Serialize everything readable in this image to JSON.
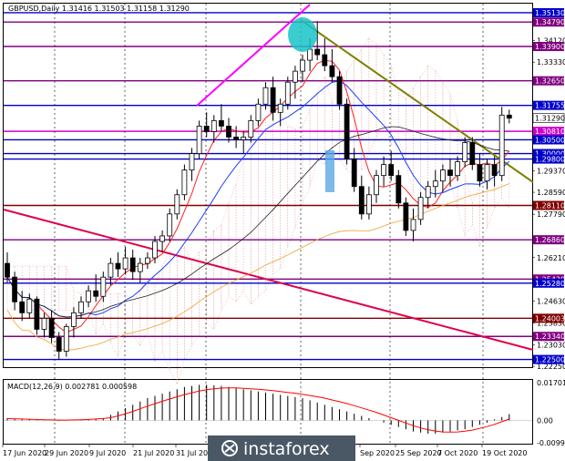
{
  "header": {
    "symbol_line": "GBPUSD,Daily  1.31416 1.31503 1.31158 1.31290"
  },
  "indicator": {
    "label": "MACD(12,26,9) 0.002781 0.000598"
  },
  "watermark": {
    "text": "instaforex"
  },
  "chart_data": {
    "type": "candlestick",
    "ylim": [
      1.2222,
      1.3546
    ],
    "x_tick_labels": [
      "17 Jun 2020",
      "29 Jun 2020",
      "9 Jul 2020",
      "21 Jul 2020",
      "31 Jul 2020",
      "Sep 2020",
      "25 Sep 2020",
      "7 Oct 2020",
      "19 Oct 2020"
    ],
    "y_tick_labels": [
      "1.35130",
      "1.34790",
      "1.34120",
      "1.33900",
      "1.33330",
      "1.32650",
      "1.31755",
      "1.31290",
      "1.30810",
      "1.30500",
      "1.30000",
      "1.29800",
      "1.29370",
      "1.28590",
      "1.28110",
      "1.27790",
      "1.26860",
      "1.26210",
      "1.25430",
      "1.25280",
      "1.24630",
      "1.24003",
      "1.23830",
      "1.23340",
      "1.23030",
      "1.22500",
      "1.22250"
    ],
    "levels": [
      {
        "value": 1.3513,
        "label": "1.35130",
        "color": "#0000cc"
      },
      {
        "value": 1.3479,
        "label": "1.34790",
        "color": "#800080"
      },
      {
        "value": 1.339,
        "label": "1.33900",
        "color": "#800080"
      },
      {
        "value": 1.3265,
        "label": "1.32650",
        "color": "#800080"
      },
      {
        "value": 1.31755,
        "label": "1.31755",
        "color": "#0000cc"
      },
      {
        "value": 1.3081,
        "label": "1.30810",
        "color": "#cc00cc"
      },
      {
        "value": 1.305,
        "label": "1.30500",
        "color": "#0000cc"
      },
      {
        "value": 1.3,
        "label": "1.30000",
        "color": "#0000cc"
      },
      {
        "value": 1.298,
        "label": "1.29800",
        "color": "#0000cc"
      },
      {
        "value": 1.2811,
        "label": "1.28110",
        "color": "#800000"
      },
      {
        "value": 1.2686,
        "label": "1.26860",
        "color": "#800080"
      },
      {
        "value": 1.2543,
        "label": "1.25430",
        "color": "#800080"
      },
      {
        "value": 1.2528,
        "label": "1.25280",
        "color": "#0000cc"
      },
      {
        "value": 1.24,
        "label": "1.24003",
        "color": "#800000"
      },
      {
        "value": 1.2334,
        "label": "1.23340",
        "color": "#800080"
      },
      {
        "value": 1.225,
        "label": "1.22500",
        "color": "#0000cc"
      }
    ],
    "current_price": {
      "value": 1.3129,
      "label": "1.31290"
    },
    "candles": [
      [
        1.26,
        1.264,
        1.253,
        1.255
      ],
      [
        1.255,
        1.257,
        1.243,
        1.246
      ],
      [
        1.246,
        1.25,
        1.239,
        1.242
      ],
      [
        1.242,
        1.249,
        1.24,
        1.247
      ],
      [
        1.247,
        1.248,
        1.234,
        1.236
      ],
      [
        1.236,
        1.242,
        1.233,
        1.24
      ],
      [
        1.24,
        1.243,
        1.231,
        1.233
      ],
      [
        1.233,
        1.235,
        1.225,
        1.228
      ],
      [
        1.228,
        1.238,
        1.226,
        1.237
      ],
      [
        1.237,
        1.244,
        1.233,
        1.242
      ],
      [
        1.242,
        1.248,
        1.24,
        1.246
      ],
      [
        1.246,
        1.252,
        1.244,
        1.25
      ],
      [
        1.25,
        1.256,
        1.246,
        1.248
      ],
      [
        1.248,
        1.257,
        1.246,
        1.255
      ],
      [
        1.255,
        1.262,
        1.252,
        1.26
      ],
      [
        1.26,
        1.264,
        1.255,
        1.258
      ],
      [
        1.258,
        1.266,
        1.256,
        1.262
      ],
      [
        1.262,
        1.265,
        1.254,
        1.257
      ],
      [
        1.257,
        1.262,
        1.253,
        1.26
      ],
      [
        1.26,
        1.264,
        1.258,
        1.262
      ],
      [
        1.262,
        1.27,
        1.26,
        1.268
      ],
      [
        1.268,
        1.272,
        1.264,
        1.27
      ],
      [
        1.27,
        1.28,
        1.268,
        1.278
      ],
      [
        1.278,
        1.287,
        1.276,
        1.285
      ],
      [
        1.285,
        1.296,
        1.283,
        1.294
      ],
      [
        1.294,
        1.302,
        1.29,
        1.3
      ],
      [
        1.3,
        1.312,
        1.298,
        1.31
      ],
      [
        1.31,
        1.315,
        1.306,
        1.308
      ],
      [
        1.308,
        1.314,
        1.304,
        1.312
      ],
      [
        1.312,
        1.318,
        1.308,
        1.31
      ],
      [
        1.31,
        1.313,
        1.304,
        1.306
      ],
      [
        1.306,
        1.31,
        1.302,
        1.305
      ],
      [
        1.305,
        1.308,
        1.3,
        1.306
      ],
      [
        1.306,
        1.314,
        1.304,
        1.312
      ],
      [
        1.312,
        1.32,
        1.31,
        1.318
      ],
      [
        1.318,
        1.326,
        1.316,
        1.324
      ],
      [
        1.324,
        1.328,
        1.312,
        1.315
      ],
      [
        1.315,
        1.32,
        1.31,
        1.318
      ],
      [
        1.318,
        1.328,
        1.316,
        1.326
      ],
      [
        1.326,
        1.332,
        1.32,
        1.33
      ],
      [
        1.33,
        1.336,
        1.326,
        1.334
      ],
      [
        1.334,
        1.342,
        1.33,
        1.338
      ],
      [
        1.338,
        1.3482,
        1.334,
        1.336
      ],
      [
        1.336,
        1.342,
        1.33,
        1.332
      ],
      [
        1.332,
        1.338,
        1.326,
        1.328
      ],
      [
        1.328,
        1.33,
        1.316,
        1.318
      ],
      [
        1.318,
        1.32,
        1.296,
        1.298
      ],
      [
        1.298,
        1.302,
        1.286,
        1.288
      ],
      [
        1.288,
        1.292,
        1.276,
        1.278
      ],
      [
        1.278,
        1.288,
        1.276,
        1.285
      ],
      [
        1.285,
        1.294,
        1.282,
        1.292
      ],
      [
        1.292,
        1.299,
        1.288,
        1.296
      ],
      [
        1.296,
        1.301,
        1.29,
        1.292
      ],
      [
        1.292,
        1.294,
        1.28,
        1.282
      ],
      [
        1.282,
        1.284,
        1.27,
        1.272
      ],
      [
        1.272,
        1.28,
        1.268,
        1.276
      ],
      [
        1.276,
        1.286,
        1.274,
        1.284
      ],
      [
        1.284,
        1.29,
        1.28,
        1.288
      ],
      [
        1.288,
        1.294,
        1.284,
        1.29
      ],
      [
        1.29,
        1.296,
        1.286,
        1.294
      ],
      [
        1.294,
        1.298,
        1.288,
        1.292
      ],
      [
        1.292,
        1.299,
        1.29,
        1.297
      ],
      [
        1.297,
        1.306,
        1.295,
        1.304
      ],
      [
        1.304,
        1.306,
        1.294,
        1.296
      ],
      [
        1.296,
        1.3,
        1.288,
        1.29
      ],
      [
        1.29,
        1.298,
        1.287,
        1.296
      ],
      [
        1.296,
        1.299,
        1.288,
        1.292
      ],
      [
        1.292,
        1.317,
        1.29,
        1.314
      ],
      [
        1.314,
        1.316,
        1.311,
        1.3129
      ]
    ],
    "macd": {
      "ylim": [
        -0.0105,
        0.0182
      ],
      "tick_labels": [
        "0.017012",
        "0.00",
        "-0.009956"
      ],
      "histogram": [
        0.001,
        0.0008,
        0.0006,
        0.0004,
        0.0002,
        0.0001,
        0.0,
        -0.0002,
        0.0,
        0.0002,
        0.0004,
        0.0006,
        0.0008,
        0.001,
        0.0025,
        0.004,
        0.0055,
        0.007,
        0.0085,
        0.01,
        0.011,
        0.012,
        0.013,
        0.014,
        0.015,
        0.0155,
        0.016,
        0.016,
        0.0158,
        0.0155,
        0.015,
        0.0145,
        0.014,
        0.0135,
        0.013,
        0.0125,
        0.012,
        0.0115,
        0.011,
        0.0105,
        0.01,
        0.009,
        0.008,
        0.007,
        0.006,
        0.005,
        0.004,
        0.003,
        0.002,
        0.001,
        0.0,
        -0.001,
        -0.002,
        -0.003,
        -0.004,
        -0.005,
        -0.0055,
        -0.006,
        -0.006,
        -0.0055,
        -0.005,
        -0.0045,
        -0.004,
        -0.003,
        -0.002,
        -0.001,
        0.0005,
        0.0015,
        0.0028
      ],
      "signal": [
        0.0008,
        0.0007,
        0.0006,
        0.0005,
        0.0004,
        0.0003,
        0.0002,
        0.0001,
        0.0001,
        0.0002,
        0.0003,
        0.0004,
        0.0006,
        0.0008,
        0.0012,
        0.002,
        0.003,
        0.004,
        0.0052,
        0.0064,
        0.0075,
        0.0086,
        0.0096,
        0.0106,
        0.0116,
        0.0124,
        0.0132,
        0.0138,
        0.0142,
        0.0145,
        0.0146,
        0.0146,
        0.0144,
        0.0142,
        0.014,
        0.0137,
        0.0134,
        0.013,
        0.0126,
        0.0122,
        0.0117,
        0.0112,
        0.0106,
        0.01,
        0.0092,
        0.0084,
        0.0076,
        0.0066,
        0.0056,
        0.0046,
        0.0036,
        0.0024,
        0.0012,
        0.0,
        -0.0012,
        -0.0024,
        -0.0034,
        -0.0042,
        -0.0048,
        -0.0052,
        -0.0053,
        -0.0052,
        -0.0049,
        -0.0044,
        -0.0036,
        -0.0028,
        -0.0018,
        -0.0006,
        0.0006
      ]
    }
  }
}
